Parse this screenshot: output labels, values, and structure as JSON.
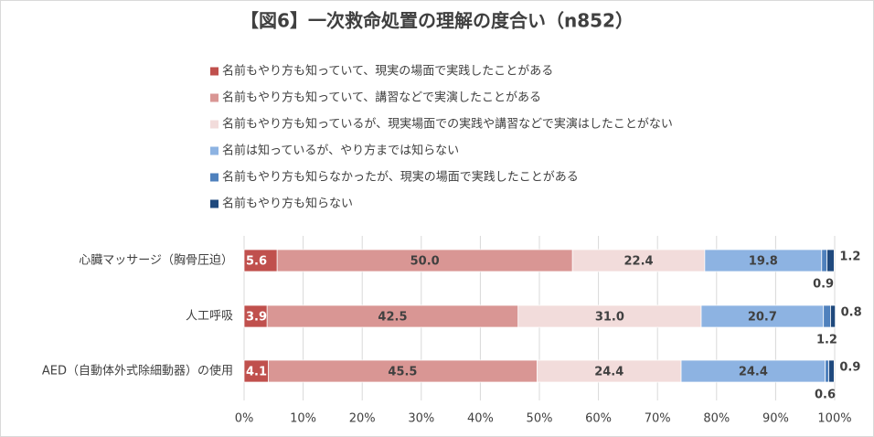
{
  "chart_data": {
    "type": "stacked-bar-horizontal",
    "title": "【図6】一次救命処置の理解の度合い（n852）",
    "categories": [
      "心臓マッサージ（胸骨圧迫）",
      "人工呼吸",
      "AED（自動体外式除細動器）の使用"
    ],
    "series": [
      {
        "name": "名前もやり方も知っていて、現実の場面で実践したことがある",
        "color": "#c0504d",
        "values": [
          5.6,
          3.9,
          4.1
        ]
      },
      {
        "name": "名前もやり方も知っていて、講習などで実演したことがある",
        "color": "#d99694",
        "values": [
          50.0,
          42.5,
          45.5
        ],
        "value_labels": [
          "50.0",
          "42.5",
          "45.5"
        ]
      },
      {
        "name": "名前もやり方も知っているが、現実場面での実践や講習などで実演はしたことがない",
        "color": "#f2dcdb",
        "values": [
          22.4,
          31.0,
          24.4
        ],
        "value_labels": [
          "22.4",
          "31.0",
          "24.4"
        ]
      },
      {
        "name": "名前は知っているが、やり方までは知らない",
        "color": "#8db3e2",
        "values": [
          19.8,
          20.7,
          24.4
        ]
      },
      {
        "name": "名前もやり方も知らなかったが、現実の場面で実践したことがある",
        "color": "#4f81bd",
        "values": [
          0.9,
          1.2,
          0.6
        ]
      },
      {
        "name": "名前もやり方も知らない",
        "color": "#1f497d",
        "values": [
          1.2,
          0.8,
          0.9
        ]
      }
    ],
    "xlim": [
      0,
      100
    ],
    "xticks": [
      {
        "value": 0,
        "label": "0%"
      },
      {
        "value": 10,
        "label": "10%"
      },
      {
        "value": 20,
        "label": "20%"
      },
      {
        "value": 30,
        "label": "30%"
      },
      {
        "value": 40,
        "label": "40%"
      },
      {
        "value": 50,
        "label": "50%"
      },
      {
        "value": 60,
        "label": "60%"
      },
      {
        "value": 70,
        "label": "70%"
      },
      {
        "value": 80,
        "label": "80%"
      },
      {
        "value": 90,
        "label": "90%"
      },
      {
        "value": 100,
        "label": "100%"
      }
    ],
    "grid": true
  }
}
